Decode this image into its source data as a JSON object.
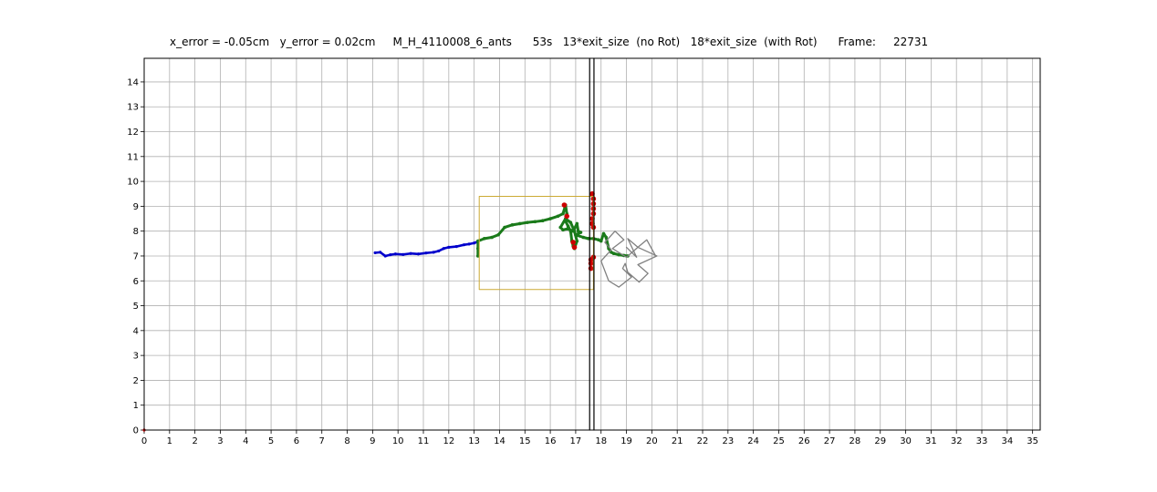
{
  "chart_data": {
    "type": "line",
    "title": "x_error = -0.05cm   y_error = 0.02cm     M_H_4110008_6_ants      53s   13*exit_size  (no Rot)   18*exit_size  (with Rot)      Frame:     22731",
    "xlabel": "",
    "ylabel": "",
    "xlim": [
      0,
      35.3
    ],
    "ylim": [
      0,
      14.95
    ],
    "xticks": [
      0,
      1,
      2,
      3,
      4,
      5,
      6,
      7,
      8,
      9,
      10,
      11,
      12,
      13,
      14,
      15,
      16,
      17,
      18,
      19,
      20,
      21,
      22,
      23,
      24,
      25,
      26,
      27,
      28,
      29,
      30,
      31,
      32,
      33,
      34,
      35
    ],
    "yticks": [
      0,
      1,
      2,
      3,
      4,
      5,
      6,
      7,
      8,
      9,
      10,
      11,
      12,
      13,
      14
    ],
    "grid": true,
    "colors": {
      "trajectory_no_rot": "#0000cc",
      "trajectory_with_rot": "#1a7a1a",
      "contact_points": "#cc0000",
      "exit_rectangle": "#ccaa33",
      "load_shape": "#808080",
      "wall": "#000000"
    },
    "series": [
      {
        "color": "blue",
        "x": [
          9.1,
          9.3,
          9.5,
          9.7,
          9.9,
          10.2,
          10.5,
          10.8,
          11.1,
          11.4,
          11.6,
          11.8,
          12.0,
          12.3,
          12.6,
          12.8,
          13.0,
          13.15
        ],
        "y": [
          7.13,
          7.15,
          7.0,
          7.05,
          7.08,
          7.06,
          7.1,
          7.08,
          7.12,
          7.15,
          7.2,
          7.3,
          7.35,
          7.38,
          7.45,
          7.48,
          7.52,
          7.58
        ]
      },
      {
        "color": "green",
        "x": [
          13.15,
          13.15,
          13.15,
          13.4,
          13.7,
          13.95,
          14.2,
          14.5,
          14.8,
          15.1,
          15.4,
          15.7,
          16.0,
          16.3,
          16.5,
          16.6,
          16.65,
          16.6,
          16.7,
          16.8,
          16.85,
          16.9,
          16.95,
          17.05,
          16.95,
          16.8,
          16.6,
          16.4,
          16.5,
          16.7,
          16.9,
          17.05,
          17.1,
          17.2,
          17.0,
          17.3,
          17.5,
          17.7,
          17.9,
          18.0,
          18.1,
          18.2,
          18.3,
          18.4,
          18.5,
          18.7,
          18.9,
          19.05
        ],
        "y": [
          7.0,
          7.3,
          7.6,
          7.7,
          7.75,
          7.85,
          8.15,
          8.25,
          8.3,
          8.35,
          8.38,
          8.42,
          8.5,
          8.6,
          8.7,
          9.05,
          8.7,
          8.4,
          8.2,
          8.0,
          7.6,
          7.4,
          7.3,
          7.6,
          8.0,
          8.35,
          8.5,
          8.15,
          8.05,
          8.1,
          8.0,
          8.3,
          8.0,
          7.95,
          7.85,
          7.75,
          7.7,
          7.7,
          7.65,
          7.6,
          7.9,
          7.75,
          7.3,
          7.15,
          7.1,
          7.05,
          7.02,
          7.0
        ]
      },
      {
        "color": "red",
        "x": [
          17.65,
          17.7,
          17.7,
          17.7,
          17.7,
          17.65,
          17.65,
          17.7,
          17.7,
          17.6,
          17.6,
          17.6,
          16.55,
          16.65,
          16.9,
          16.95
        ],
        "y": [
          9.5,
          9.3,
          9.1,
          8.9,
          8.7,
          8.5,
          8.3,
          8.15,
          6.95,
          6.85,
          6.7,
          6.5,
          9.05,
          8.6,
          7.55,
          7.35
        ]
      },
      {
        "color": "yellow",
        "x": [
          13.2,
          17.7,
          17.7,
          13.2,
          13.2
        ],
        "y": [
          5.65,
          5.65,
          9.4,
          9.4,
          5.65
        ]
      },
      {
        "color": "gray",
        "x": [
          19.45,
          20.2,
          19.45,
          19.85,
          19.5,
          19.05,
          18.95,
          18.85,
          19.2,
          18.7,
          18.3,
          18.0,
          18.4,
          18.15,
          18.55,
          18.9,
          18.45,
          19.0,
          19.45
        ],
        "y": [
          7.35,
          7.0,
          6.65,
          6.3,
          5.95,
          6.35,
          6.7,
          6.5,
          6.15,
          5.75,
          6.0,
          6.8,
          7.25,
          7.55,
          8.0,
          7.65,
          7.3,
          6.95,
          7.35
        ]
      },
      {
        "color": "gray",
        "x": [
          19.0,
          19.4,
          19.05,
          19.45,
          19.8,
          20.15
        ],
        "y": [
          7.35,
          6.95,
          7.7,
          7.35,
          7.65,
          7.0
        ]
      },
      {
        "color": "black",
        "x": [
          17.55,
          17.55
        ],
        "y": [
          0,
          14.95
        ]
      },
      {
        "color": "black",
        "x": [
          17.72,
          17.72
        ],
        "y": [
          0,
          14.95
        ]
      }
    ]
  }
}
